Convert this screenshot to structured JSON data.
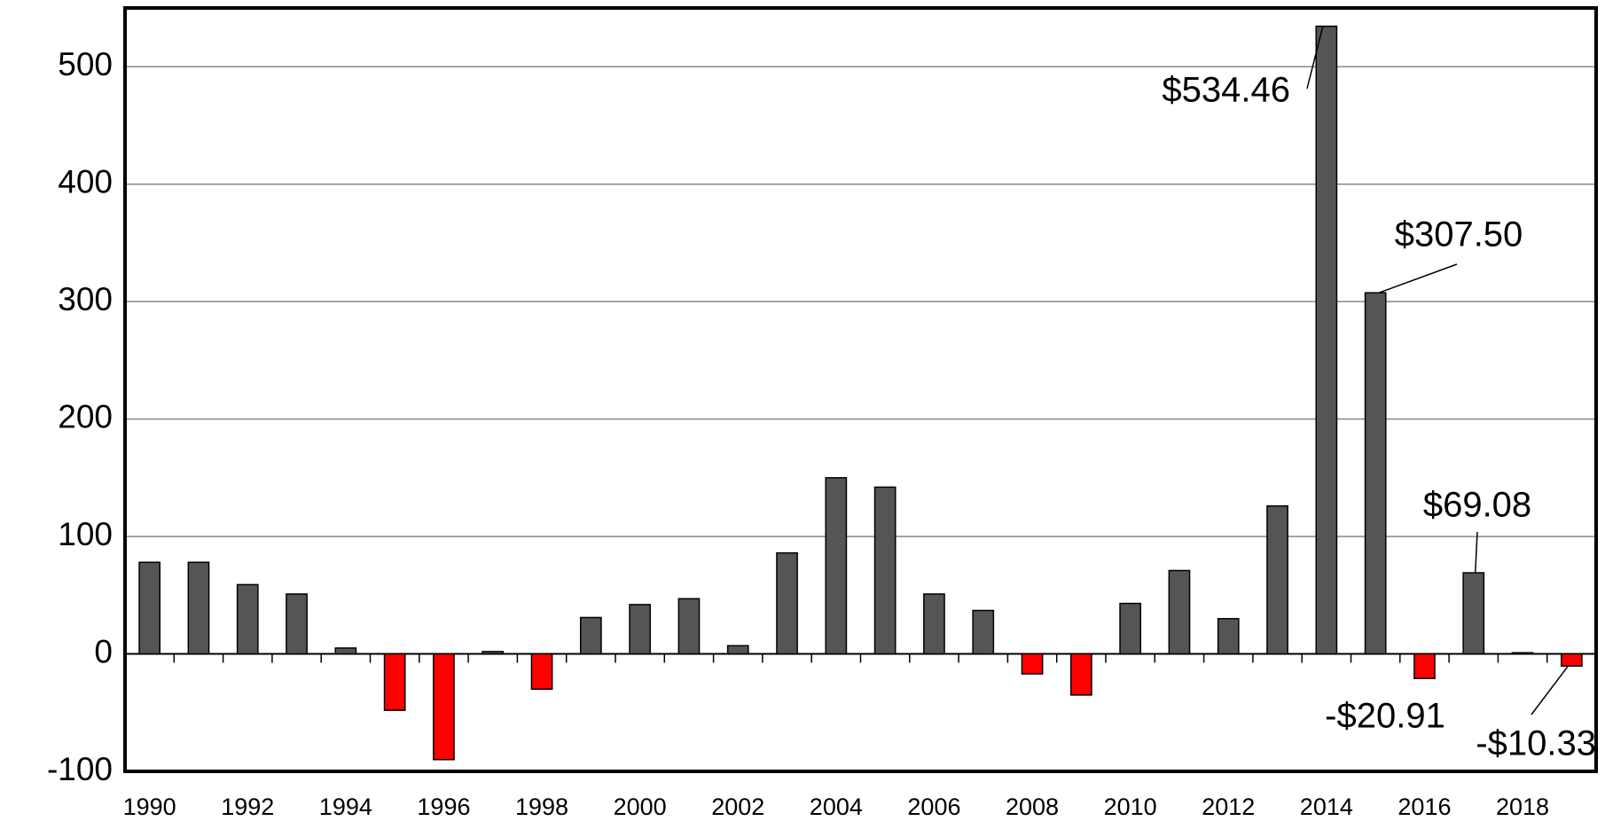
{
  "chart_data": {
    "type": "bar",
    "categories": [
      "1990",
      null,
      "1992",
      null,
      "1994",
      null,
      "1996",
      null,
      "1998",
      null,
      "2000",
      null,
      "2002",
      null,
      "2004",
      null,
      "2006",
      null,
      "2008",
      null,
      "2010",
      null,
      "2012",
      null,
      "2014",
      null,
      "2016",
      null,
      "2018",
      null
    ],
    "values": [
      78,
      78,
      59,
      51,
      5,
      -48,
      -90,
      2,
      -30,
      31,
      42,
      47,
      7,
      86,
      150,
      142,
      51,
      37,
      -17,
      -35,
      43,
      71,
      30,
      126,
      534.46,
      307.5,
      -20.91,
      69.08,
      1,
      -10.33
    ],
    "value_labels": [
      null,
      null,
      null,
      null,
      null,
      null,
      null,
      null,
      null,
      null,
      null,
      null,
      null,
      null,
      null,
      null,
      null,
      null,
      null,
      null,
      null,
      null,
      null,
      null,
      "$534.46",
      "$307.50",
      "-$20.91",
      "$69.08",
      null,
      "-$10.33"
    ],
    "positive_color": "#555555",
    "negative_color": "#ff0000",
    "ylim": [
      -100,
      550
    ],
    "yticks": [
      -100,
      0,
      100,
      200,
      300,
      400,
      500
    ],
    "grid": true
  }
}
